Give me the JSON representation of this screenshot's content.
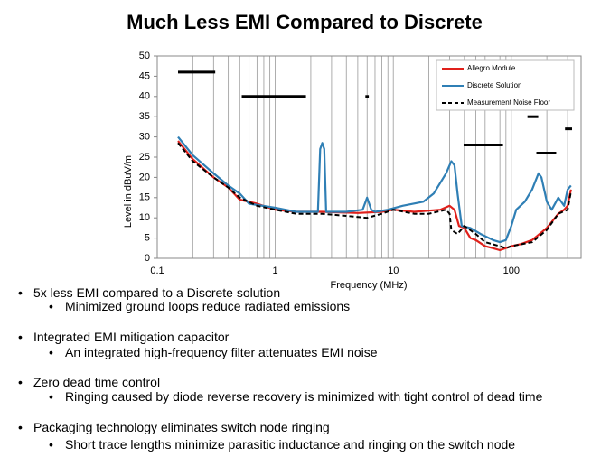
{
  "title": "Much Less EMI Compared to Discrete",
  "chart_data": {
    "type": "line",
    "xlabel": "Frequency (MHz)",
    "ylabel": "Level in dBuV/m",
    "xscale": "log",
    "xlim": [
      0.1,
      390
    ],
    "xticks": [
      0.1,
      1,
      10,
      100
    ],
    "ylim": [
      0,
      50
    ],
    "yticks": [
      0,
      5,
      10,
      15,
      20,
      25,
      30,
      35,
      40,
      45,
      50
    ],
    "grid": true,
    "legend": "upper right",
    "series": [
      {
        "name": "Allegro Module",
        "color": "#e0201b",
        "dash": false,
        "x": [
          0.15,
          0.2,
          0.3,
          0.4,
          0.5,
          0.7,
          1,
          1.5,
          2.5,
          5,
          8,
          10,
          15,
          25,
          30,
          33,
          36,
          40,
          45,
          50,
          60,
          70,
          80,
          100,
          120,
          150,
          200,
          250,
          280,
          300,
          320
        ],
        "values": [
          29,
          24.5,
          20,
          17.5,
          14.5,
          13.5,
          12,
          11.5,
          11.5,
          11.2,
          11.5,
          12,
          11.5,
          12,
          13,
          12,
          8,
          7.5,
          5,
          4.5,
          3,
          2.5,
          2,
          3,
          3.5,
          4.5,
          7.5,
          11,
          12,
          13,
          17
        ]
      },
      {
        "name": "Discrete Solution",
        "color": "#2f7fb5",
        "dash": false,
        "x": [
          0.15,
          0.2,
          0.3,
          0.4,
          0.5,
          0.6,
          1,
          1.5,
          2.3,
          2.4,
          2.5,
          2.6,
          2.7,
          4,
          5.5,
          6,
          6.5,
          7,
          9,
          12,
          18,
          22,
          28,
          31,
          33,
          35,
          38,
          45,
          55,
          70,
          80,
          90,
          100,
          110,
          130,
          150,
          170,
          180,
          200,
          220,
          250,
          280,
          300,
          320
        ],
        "values": [
          30,
          25.5,
          21,
          18,
          16,
          13.5,
          12.5,
          11.5,
          11.5,
          27,
          28.5,
          27,
          11.5,
          11.5,
          12,
          15,
          12,
          11.5,
          12,
          13,
          14,
          16,
          21,
          24,
          23,
          16,
          8,
          7.5,
          6,
          4.5,
          4,
          4.5,
          8,
          12,
          14,
          17,
          21,
          20,
          14,
          12,
          15,
          13,
          17,
          18
        ]
      },
      {
        "name": "Measurement Noise Floor",
        "color": "#000000",
        "dash": true,
        "x": [
          0.15,
          0.2,
          0.3,
          0.4,
          0.5,
          0.7,
          1,
          1.5,
          2,
          2.5,
          4,
          6,
          8,
          10,
          15,
          20,
          28,
          30,
          31,
          35,
          40,
          50,
          60,
          80,
          90,
          100,
          150,
          200,
          250,
          300,
          320
        ],
        "values": [
          28.5,
          24,
          20,
          17.5,
          15,
          13,
          12,
          11,
          11,
          11,
          10.5,
          10,
          11,
          12,
          11,
          11,
          12,
          11,
          7,
          6,
          8,
          6,
          4,
          3,
          2.5,
          3,
          4,
          7,
          11,
          12,
          16.5
        ]
      }
    ],
    "limit_color": "#000000",
    "limit_lines": [
      {
        "x": [
          0.15,
          0.31
        ],
        "value": 46
      },
      {
        "x": [
          0.52,
          1.82
        ],
        "value": 40
      },
      {
        "x": [
          5.8,
          6.2
        ],
        "value": 40
      },
      {
        "x": [
          39.4,
          85
        ],
        "value": 28
      },
      {
        "x": [
          137,
          169
        ],
        "value": 35
      },
      {
        "x": [
          163,
          240
        ],
        "value": 26
      },
      {
        "x": [
          285,
          327
        ],
        "value": 32
      }
    ]
  },
  "bullets": [
    {
      "text": "5x less EMI  compared to a Discrete solution",
      "sub": "Minimized  ground loops reduce radiated emissions"
    },
    {
      "text": "Integrated EMI mitigation capacitor",
      "sub": "An integrated high-frequency filter attenuates EMI noise"
    },
    {
      "text": "Zero dead time control",
      "sub": "Ringing caused by diode reverse recovery is minimized  with tight control of dead time"
    },
    {
      "text": "Packaging technology eliminates switch node ringing",
      "sub": "Short trace lengths minimize  parasitic inductance and ringing on the switch node"
    }
  ]
}
